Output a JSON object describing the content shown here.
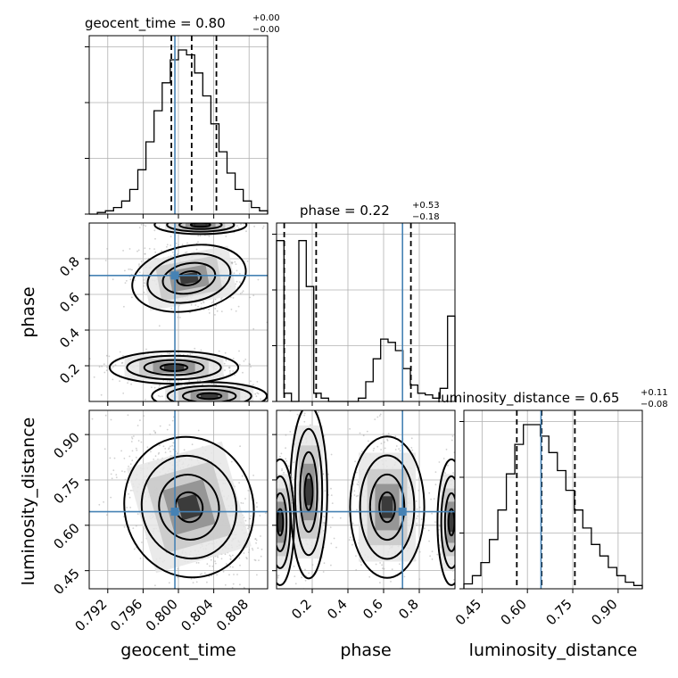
{
  "chart_data": {
    "type": "corner",
    "parameters": [
      "geocent_time",
      "phase",
      "luminosity_distance"
    ],
    "titles": {
      "geocent_time": {
        "label": "geocent_time = 0.80",
        "sup": "+0.00",
        "sub": "−0.00"
      },
      "phase": {
        "label": "phase = 0.22",
        "sup": "+0.53",
        "sub": "−0.18"
      },
      "luminosity_distance": {
        "label": "luminosity_distance = 0.65",
        "sup": "+0.11",
        "sub": "−0.08"
      }
    },
    "truths": {
      "geocent_time": 0.7996,
      "phase": 0.706,
      "luminosity_distance": 0.645
    },
    "quantiles": {
      "geocent_time": [
        0.7992,
        0.8015,
        0.8043
      ],
      "phase": [
        0.043,
        0.222,
        0.753
      ],
      "luminosity_distance": [
        0.565,
        0.647,
        0.757
      ]
    },
    "ranges": {
      "geocent_time": [
        0.7899,
        0.8101
      ],
      "phase": [
        0.0,
        1.0
      ],
      "luminosity_distance": [
        0.39,
        0.98
      ]
    },
    "ticks": {
      "geocent_time": [
        "0.792",
        "0.796",
        "0.800",
        "0.804",
        "0.808"
      ],
      "phase": [
        "0.2",
        "0.4",
        "0.6",
        "0.8"
      ],
      "luminosity_distance": [
        "0.45",
        "0.60",
        "0.75",
        "0.90"
      ]
    },
    "ytick_labels": {
      "phase": [
        "0.2",
        "0.4",
        "0.6",
        "0.8"
      ],
      "luminosity_distance": [
        "0.45",
        "0.60",
        "0.75",
        "0.90"
      ]
    },
    "histograms": {
      "geocent_time": [
        0,
        0.01,
        0.02,
        0.04,
        0.08,
        0.15,
        0.27,
        0.44,
        0.63,
        0.8,
        0.94,
        1.0,
        0.97,
        0.86,
        0.72,
        0.55,
        0.38,
        0.25,
        0.15,
        0.08,
        0.04,
        0.02
      ],
      "phase": [
        0.98,
        0.05,
        0.0,
        0.98,
        0.7,
        0.05,
        0.02,
        0.0,
        0.0,
        0.0,
        0.0,
        0.02,
        0.12,
        0.26,
        0.38,
        0.36,
        0.31,
        0.2,
        0.1,
        0.05,
        0.04,
        0.02,
        0.08,
        0.52
      ],
      "luminosity_distance": [
        0.03,
        0.08,
        0.16,
        0.3,
        0.48,
        0.7,
        0.88,
        1.0,
        1.0,
        0.93,
        0.83,
        0.72,
        0.6,
        0.48,
        0.37,
        0.27,
        0.2,
        0.13,
        0.08,
        0.04,
        0.02
      ]
    },
    "grid": true,
    "colors": {
      "truth": "#4682b4",
      "contour": "#000000",
      "points": "#999999"
    }
  }
}
